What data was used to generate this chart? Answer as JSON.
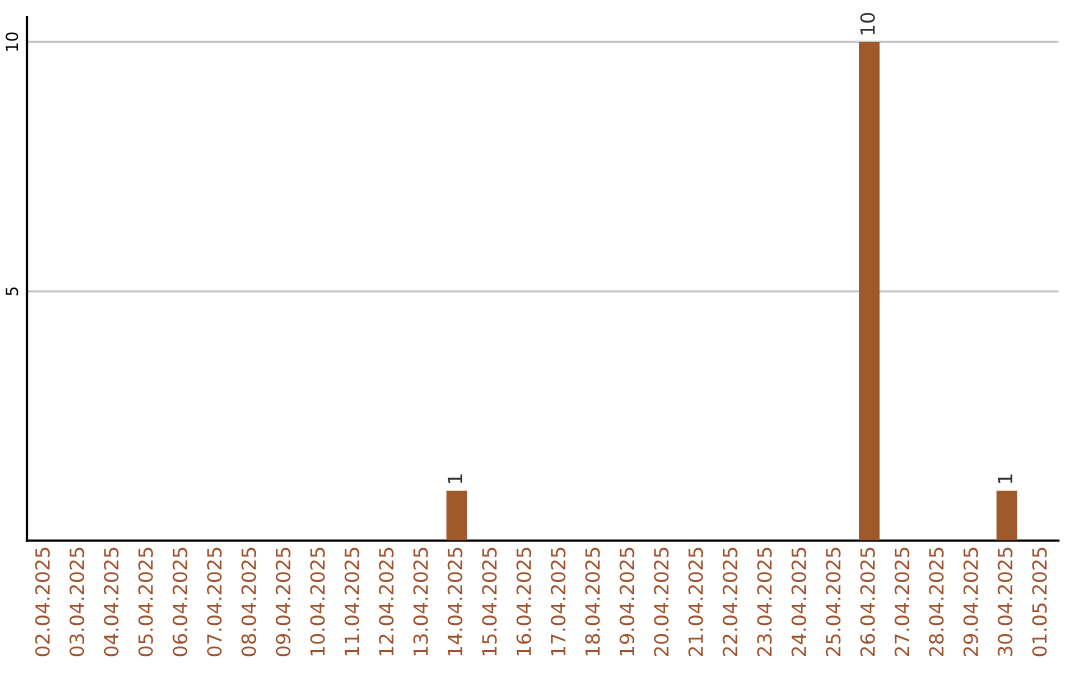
{
  "chart_data": {
    "type": "bar",
    "categories": [
      "02.04.2025",
      "03.04.2025",
      "04.04.2025",
      "05.04.2025",
      "06.04.2025",
      "07.04.2025",
      "08.04.2025",
      "09.04.2025",
      "10.04.2025",
      "11.04.2025",
      "12.04.2025",
      "13.04.2025",
      "14.04.2025",
      "15.04.2025",
      "16.04.2025",
      "17.04.2025",
      "18.04.2025",
      "19.04.2025",
      "20.04.2025",
      "21.04.2025",
      "22.04.2025",
      "23.04.2025",
      "24.04.2025",
      "25.04.2025",
      "26.04.2025",
      "27.04.2025",
      "28.04.2025",
      "29.04.2025",
      "30.04.2025",
      "01.05.2025"
    ],
    "values": [
      0,
      0,
      0,
      0,
      0,
      0,
      0,
      0,
      0,
      0,
      0,
      0,
      1,
      0,
      0,
      0,
      0,
      0,
      0,
      0,
      0,
      0,
      0,
      0,
      10,
      0,
      0,
      0,
      1,
      0
    ],
    "value_labels": [
      null,
      null,
      null,
      null,
      null,
      null,
      null,
      null,
      null,
      null,
      null,
      null,
      "1",
      null,
      null,
      null,
      null,
      null,
      null,
      null,
      null,
      null,
      null,
      null,
      "10",
      null,
      null,
      null,
      "1",
      null
    ],
    "color": "#a0592a",
    "ylim": [
      0,
      10.5
    ],
    "yticks": [
      5,
      10
    ],
    "grid": "y"
  }
}
